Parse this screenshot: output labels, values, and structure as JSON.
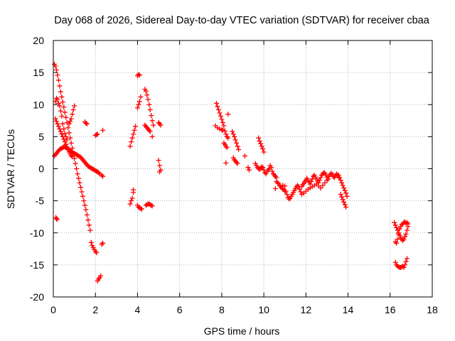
{
  "chart_data": {
    "type": "scatter",
    "title": "Day 068 of 2026, Sidereal Day-to-day VTEC variation (SDTVAR) for receiver cbaa",
    "xlabel": "GPS time / hours",
    "ylabel": "SDTVAR / TECUs",
    "xlim": [
      0,
      18
    ],
    "ylim": [
      -20,
      20
    ],
    "xticks": [
      0,
      2,
      4,
      6,
      8,
      10,
      12,
      14,
      16,
      18
    ],
    "yticks": [
      -20,
      -15,
      -10,
      -5,
      0,
      5,
      10,
      15,
      20
    ],
    "grid": true,
    "marker": "+",
    "color": "#ff0000",
    "segments": [
      {
        "x": [
          0.05,
          0.1,
          0.15,
          0.2,
          0.25,
          0.3,
          0.35,
          0.4,
          0.45,
          0.5,
          0.55,
          0.6,
          0.65,
          0.7,
          0.75,
          0.8,
          0.85,
          0.9,
          0.95,
          1.0,
          1.05,
          1.1,
          1.15,
          1.2,
          1.25,
          1.3,
          1.35,
          1.4,
          1.45,
          1.5,
          1.55,
          1.6,
          1.65,
          1.7,
          1.75,
          1.8,
          1.85,
          1.9,
          1.95,
          2.0,
          2.05,
          2.1,
          2.15,
          2.2,
          2.25,
          2.3,
          2.35
        ],
        "y": [
          16.3,
          16.0,
          15.4,
          14.6,
          13.8,
          12.9,
          12.0,
          11.2,
          10.4,
          9.6,
          8.8,
          8.0,
          7.2,
          6.4,
          5.6,
          4.8,
          4.0,
          3.2,
          2.4,
          1.6,
          0.8,
          0.0,
          -0.8,
          -1.5,
          -2.2,
          -2.9,
          -3.6,
          -4.3,
          -5.0,
          -5.7,
          -6.4,
          -7.2,
          -8.0,
          -8.8,
          -9.6,
          -11.5,
          -12.0,
          -12.3,
          -12.6,
          -12.9,
          -13.1,
          -17.5,
          -17.2,
          -17.0,
          -16.7,
          -11.8,
          -11.6
        ]
      },
      {
        "x": [
          0.1,
          0.15,
          0.2,
          0.25,
          0.3,
          0.35,
          0.4,
          0.45,
          0.5,
          0.55,
          0.6,
          0.65,
          0.7,
          0.75,
          0.8,
          0.85,
          0.9
        ],
        "y": [
          7.8,
          7.4,
          7.0,
          6.6,
          6.2,
          5.8,
          5.4,
          5.0,
          4.6,
          4.2,
          3.8,
          3.4,
          3.0,
          2.6,
          2.3,
          2.0,
          1.9
        ]
      },
      {
        "x": [
          0.05,
          0.1,
          0.15,
          0.2,
          0.25,
          0.3,
          0.35,
          0.4,
          0.45,
          0.5,
          0.55,
          0.6,
          0.65,
          0.7,
          0.75,
          0.8,
          0.85,
          0.9,
          0.95,
          1.0,
          1.05,
          1.1,
          1.15,
          1.2,
          1.25,
          1.3,
          1.35,
          1.4,
          1.45,
          1.5,
          1.55,
          1.6,
          1.65,
          1.7,
          1.75,
          1.8,
          1.85,
          1.9,
          1.95,
          2.0,
          2.05,
          2.1,
          2.15,
          2.2,
          2.3,
          2.35
        ],
        "y": [
          2.0,
          2.2,
          2.4,
          2.6,
          2.8,
          3.0,
          3.1,
          3.2,
          3.3,
          3.4,
          3.4,
          3.3,
          3.2,
          3.0,
          2.9,
          2.8,
          2.7,
          2.6,
          2.5,
          2.4,
          2.3,
          2.2,
          2.1,
          2.0,
          1.9,
          1.8,
          1.6,
          1.4,
          1.2,
          1.0,
          0.8,
          0.6,
          0.4,
          0.3,
          0.2,
          0.1,
          0.0,
          -0.1,
          -0.2,
          -0.3,
          -0.4,
          -0.5,
          -0.6,
          -0.8,
          -1.0,
          -1.2
        ]
      },
      {
        "x": [
          0.1,
          0.15,
          0.2,
          0.25,
          0.3,
          0.35,
          0.4,
          0.45,
          0.5,
          0.55,
          0.6,
          0.65,
          0.75,
          0.8,
          0.85,
          0.9,
          0.95,
          1.0
        ],
        "y": [
          10.5,
          11.0,
          10.8,
          10.2,
          9.8,
          9.0,
          8.2,
          7.0,
          6.2,
          5.5,
          5.0,
          4.5,
          7.0,
          7.4,
          7.8,
          8.5,
          9.2,
          9.8
        ]
      },
      {
        "x": [
          0.12,
          0.15,
          0.18
        ],
        "y": [
          -7.6,
          -7.8,
          -7.9
        ]
      },
      {
        "x": [
          1.5,
          1.55,
          1.6,
          2.0,
          2.05,
          2.1,
          2.35
        ],
        "y": [
          7.3,
          7.1,
          7.0,
          5.2,
          5.3,
          5.4,
          6.0
        ]
      },
      {
        "x": [
          3.65,
          3.7,
          3.75,
          3.8,
          3.85,
          3.9,
          4.0,
          4.05,
          4.1,
          4.15
        ],
        "y": [
          3.5,
          4.2,
          4.8,
          5.4,
          6.0,
          6.6,
          9.5,
          10.0,
          10.5,
          11.2
        ]
      },
      {
        "x": [
          4.0,
          4.05,
          4.1
        ],
        "y": [
          14.5,
          14.7,
          14.6
        ]
      },
      {
        "x": [
          3.65,
          3.7,
          3.75,
          3.8,
          3.8,
          4.0,
          4.05,
          4.1,
          4.15,
          4.2
        ],
        "y": [
          -5.5,
          -5.0,
          -4.6,
          -3.3,
          -3.7,
          -5.7,
          -6.0,
          -6.1,
          -6.2,
          -6.3
        ]
      },
      {
        "x": [
          4.35,
          4.4,
          4.45,
          4.5,
          4.55,
          4.6,
          4.65,
          4.7,
          4.75
        ],
        "y": [
          12.4,
          12.1,
          11.5,
          10.8,
          10.0,
          9.2,
          8.3,
          7.5,
          6.8
        ]
      },
      {
        "x": [
          4.4,
          4.45,
          4.5,
          4.55,
          4.6,
          4.65,
          4.7
        ],
        "y": [
          -5.7,
          -5.6,
          -5.5,
          -5.5,
          -5.6,
          -5.7,
          -5.8
        ]
      },
      {
        "x": [
          4.35,
          4.4,
          4.45,
          4.5,
          4.55,
          4.6,
          4.7
        ],
        "y": [
          6.8,
          6.6,
          6.4,
          6.2,
          6.0,
          5.8,
          5.0
        ]
      },
      {
        "x": [
          5.0,
          5.05,
          5.1,
          5.0,
          5.05,
          5.1,
          5.05
        ],
        "y": [
          7.2,
          7.0,
          6.8,
          1.3,
          0.5,
          -0.2,
          -0.5
        ]
      },
      {
        "x": [
          7.75,
          7.8,
          7.85,
          7.9,
          7.95,
          8.0,
          8.05,
          8.1,
          8.15,
          8.2,
          8.25,
          8.3
        ],
        "y": [
          10.2,
          9.7,
          9.2,
          8.7,
          8.2,
          7.7,
          7.2,
          6.7,
          5.9,
          5.4,
          5.0,
          4.8
        ]
      },
      {
        "x": [
          7.7,
          7.8,
          7.9,
          8.0,
          8.05
        ],
        "y": [
          6.7,
          6.4,
          6.2,
          6.1,
          6.0
        ]
      },
      {
        "x": [
          8.1,
          8.15,
          8.2,
          8.25,
          8.3
        ],
        "y": [
          4.0,
          3.8,
          3.5,
          3.3,
          8.5
        ]
      },
      {
        "x": [
          8.2
        ],
        "y": [
          0.9
        ]
      },
      {
        "x": [
          8.5,
          8.55,
          8.6,
          8.65,
          8.7,
          8.75,
          8.8,
          8.55,
          8.6,
          8.65,
          8.7,
          8.75
        ],
        "y": [
          5.8,
          5.4,
          5.0,
          4.5,
          4.0,
          3.5,
          3.0,
          1.7,
          1.4,
          1.2,
          1.0,
          0.8
        ]
      },
      {
        "x": [
          9.1,
          9.25,
          9.3
        ],
        "y": [
          2.0,
          0.2,
          -0.2
        ]
      },
      {
        "x": [
          9.75,
          9.8,
          9.85,
          9.9,
          9.95,
          10.0
        ],
        "y": [
          4.8,
          4.3,
          3.9,
          3.5,
          3.1,
          2.6
        ]
      },
      {
        "x": [
          9.6,
          9.65,
          9.7,
          9.75,
          9.8,
          9.85,
          9.9,
          9.95,
          10.0,
          10.05,
          10.1,
          10.15,
          10.2,
          10.25,
          10.3,
          10.35,
          10.4,
          10.45,
          10.5,
          10.55,
          10.6
        ],
        "y": [
          0.8,
          0.5,
          0.2,
          0.0,
          -0.1,
          0.1,
          0.3,
          0.2,
          -0.2,
          -0.6,
          -0.8,
          -0.5,
          -0.2,
          0.0,
          0.5,
          0.2,
          -0.4,
          -0.8,
          -1.0,
          -1.2,
          -1.4
        ]
      },
      {
        "x": [
          10.6,
          10.65,
          10.7,
          10.75,
          10.8,
          10.85,
          10.9,
          10.95,
          11.0
        ],
        "y": [
          -2.0,
          -2.2,
          -2.3,
          -2.6,
          -2.8,
          -3.0,
          -3.2,
          -3.3,
          -3.5
        ]
      },
      {
        "x": [
          10.55,
          10.9,
          11.0,
          11.05,
          11.1,
          11.15,
          11.2,
          11.25,
          11.3,
          11.35,
          11.4,
          11.45,
          11.5,
          11.55,
          11.6,
          11.65,
          11.7,
          11.75,
          11.8
        ],
        "y": [
          -3.1,
          -2.6,
          -2.7,
          -3.5,
          -4.0,
          -4.5,
          -4.7,
          -4.6,
          -4.3,
          -4.0,
          -3.7,
          -3.4,
          -3.1,
          -2.8,
          -2.6,
          -2.8,
          -3.2,
          -3.6,
          -4.0
        ]
      },
      {
        "x": [
          11.8,
          11.85,
          11.9,
          11.95,
          12.0,
          12.05,
          12.1,
          12.15,
          12.2,
          12.25,
          12.3,
          12.35,
          12.4,
          12.45,
          12.5,
          12.55,
          12.6,
          12.65,
          12.7,
          12.75,
          12.8,
          12.85,
          12.9,
          12.95,
          13.0,
          13.05,
          13.1,
          13.15,
          13.2,
          13.25,
          13.3,
          13.35,
          13.4,
          13.45,
          13.5,
          13.55
        ],
        "y": [
          -2.8,
          -2.5,
          -2.3,
          -2.0,
          -1.8,
          -1.5,
          -1.8,
          -2.1,
          -2.4,
          -2.0,
          -1.6,
          -1.2,
          -1.0,
          -1.3,
          -1.6,
          -1.9,
          -2.2,
          -1.8,
          -1.4,
          -1.0,
          -0.8,
          -0.6,
          -0.7,
          -1.0,
          -1.3,
          -1.6,
          -1.2,
          -0.9,
          -0.7,
          -0.9,
          -1.2,
          -1.4,
          -1.1,
          -0.8,
          -1.0,
          -1.3
        ]
      },
      {
        "x": [
          11.9,
          12.0,
          12.1,
          12.2,
          12.3,
          12.4,
          12.5,
          12.6,
          12.7,
          12.8,
          12.9,
          13.0
        ],
        "y": [
          -3.8,
          -3.5,
          -3.2,
          -3.0,
          -2.8,
          -2.6,
          -2.4,
          -2.7,
          -3.0,
          -2.6,
          -2.2,
          -1.8
        ]
      },
      {
        "x": [
          13.55,
          13.6,
          13.65,
          13.7,
          13.75,
          13.8,
          13.85,
          13.9,
          13.95,
          13.65,
          13.7,
          13.75,
          13.8,
          13.85,
          13.9
        ],
        "y": [
          -1.0,
          -1.4,
          -1.8,
          -2.2,
          -2.6,
          -3.0,
          -3.4,
          -3.8,
          -4.3,
          -4.0,
          -4.4,
          -4.8,
          -5.2,
          -5.6,
          -6.0
        ]
      },
      {
        "x": [
          16.2,
          16.25,
          16.3,
          16.35,
          16.4,
          16.45,
          16.5,
          16.55,
          16.6,
          16.65,
          16.7,
          16.75,
          16.8,
          16.85,
          16.85,
          16.8,
          16.75,
          16.7,
          16.65,
          16.6,
          16.55,
          16.5,
          16.45,
          16.4,
          16.35,
          16.3,
          16.25
        ],
        "y": [
          -8.4,
          -8.8,
          -9.2,
          -9.6,
          -10.0,
          -10.4,
          -10.8,
          -11.0,
          -11.2,
          -11.0,
          -10.6,
          -10.2,
          -9.6,
          -9.0,
          -8.6,
          -8.4,
          -8.5,
          -8.3,
          -8.4,
          -8.6,
          -8.7,
          -9.0,
          -9.4,
          -10.2,
          -11.0,
          -11.6,
          -11.4
        ]
      },
      {
        "x": [
          16.25,
          16.3,
          16.35,
          16.4,
          16.45,
          16.5,
          16.55,
          16.6,
          16.65,
          16.7,
          16.75,
          16.8
        ],
        "y": [
          -14.6,
          -15.0,
          -15.2,
          -15.3,
          -15.4,
          -15.4,
          -15.3,
          -15.2,
          -15.4,
          -15.0,
          -14.5,
          -14.0
        ]
      }
    ]
  }
}
